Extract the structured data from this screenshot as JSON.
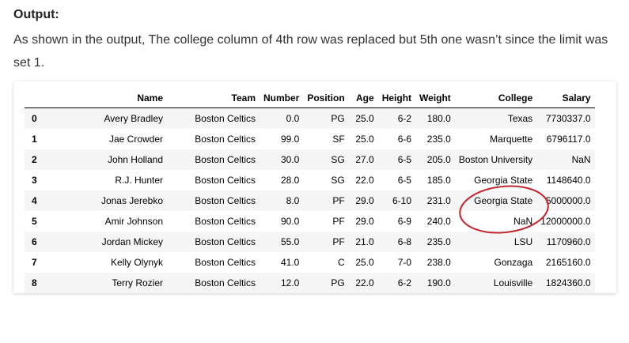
{
  "heading": "Output:",
  "paragraph": "As shown in the output, The college column of 4th row was replaced but 5th one wasn’t since the limit was set 1.",
  "table": {
    "columns": [
      "",
      "Name",
      "Team",
      "Number",
      "Position",
      "Age",
      "Height",
      "Weight",
      "College",
      "Salary"
    ],
    "rows": [
      {
        "index": "0",
        "cells": [
          "Avery Bradley",
          "Boston Celtics",
          "0.0",
          "PG",
          "25.0",
          "6-2",
          "180.0",
          "Texas",
          "7730337.0"
        ]
      },
      {
        "index": "1",
        "cells": [
          "Jae Crowder",
          "Boston Celtics",
          "99.0",
          "SF",
          "25.0",
          "6-6",
          "235.0",
          "Marquette",
          "6796117.0"
        ]
      },
      {
        "index": "2",
        "cells": [
          "John Holland",
          "Boston Celtics",
          "30.0",
          "SG",
          "27.0",
          "6-5",
          "205.0",
          "Boston University",
          "NaN"
        ]
      },
      {
        "index": "3",
        "cells": [
          "R.J. Hunter",
          "Boston Celtics",
          "28.0",
          "SG",
          "22.0",
          "6-5",
          "185.0",
          "Georgia State",
          "1148640.0"
        ]
      },
      {
        "index": "4",
        "cells": [
          "Jonas Jerebko",
          "Boston Celtics",
          "8.0",
          "PF",
          "29.0",
          "6-10",
          "231.0",
          "Georgia State",
          "5000000.0"
        ]
      },
      {
        "index": "5",
        "cells": [
          "Amir Johnson",
          "Boston Celtics",
          "90.0",
          "PF",
          "29.0",
          "6-9",
          "240.0",
          "NaN",
          "12000000.0"
        ]
      },
      {
        "index": "6",
        "cells": [
          "Jordan Mickey",
          "Boston Celtics",
          "55.0",
          "PF",
          "21.0",
          "6-8",
          "235.0",
          "LSU",
          "1170960.0"
        ]
      },
      {
        "index": "7",
        "cells": [
          "Kelly Olynyk",
          "Boston Celtics",
          "41.0",
          "C",
          "25.0",
          "7-0",
          "238.0",
          "Gonzaga",
          "2165160.0"
        ]
      },
      {
        "index": "8",
        "cells": [
          "Terry Rozier",
          "Boston Celtics",
          "12.0",
          "PG",
          "22.0",
          "6-2",
          "190.0",
          "Louisville",
          "1824360.0"
        ]
      }
    ]
  },
  "annotation": {
    "shape": "ellipse",
    "color": "#c0262d",
    "target_rows": [
      "4",
      "5"
    ],
    "target_column": "College"
  }
}
